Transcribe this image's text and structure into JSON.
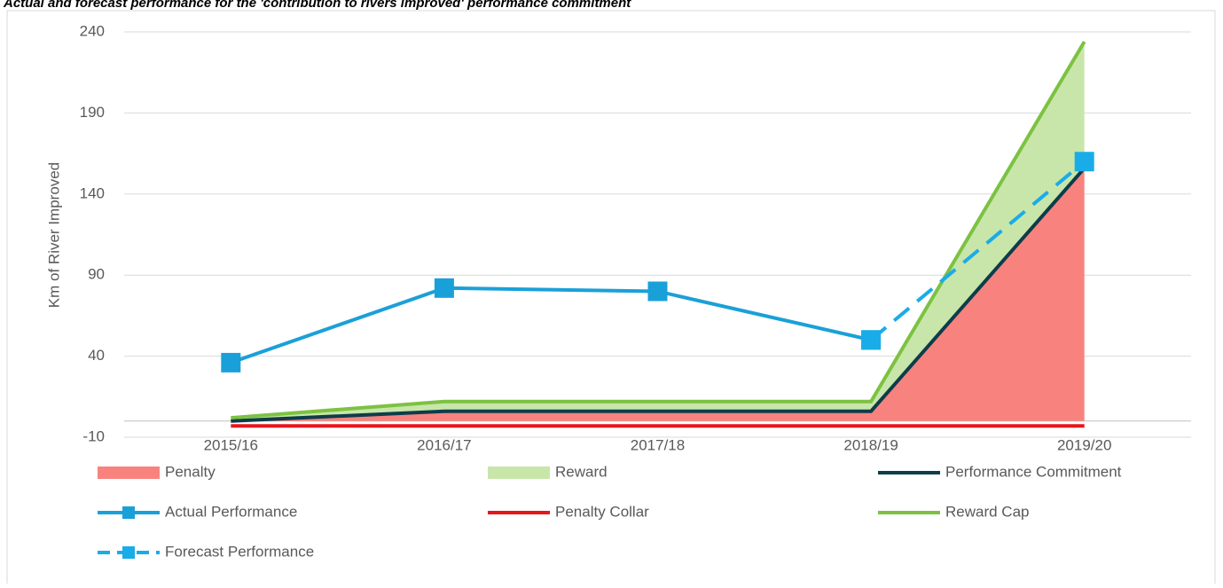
{
  "chart_data": {
    "type": "line",
    "title": "Actual and forecast performance for the 'contribution to rivers improved' performance commitment",
    "y_label": "Km of River Improved",
    "categories": [
      "2015/16",
      "2016/17",
      "2017/18",
      "2018/19",
      "2019/20"
    ],
    "ylim": [
      -10,
      240
    ],
    "yticks": [
      -10,
      40,
      90,
      140,
      190,
      240
    ],
    "grid": true,
    "series": [
      {
        "name": "Penalty",
        "style": "area",
        "stacked": true,
        "color": "#f8837e",
        "values": [
          0,
          6,
          6,
          6,
          156
        ]
      },
      {
        "name": "Reward",
        "style": "area",
        "stacked": true,
        "color": "#c8e6aa",
        "values": [
          2,
          6,
          6,
          6,
          78
        ]
      },
      {
        "name": "Performance Commitment",
        "style": "line",
        "color": "#0d3d4a",
        "values": [
          0,
          6,
          6,
          6,
          156
        ]
      },
      {
        "name": "Actual Performance",
        "style": "line",
        "marker": "square",
        "color": "#1aa0d8",
        "values": [
          36,
          82,
          80,
          50,
          null
        ]
      },
      {
        "name": "Penalty Collar",
        "style": "line",
        "color": "#e8151b",
        "values": [
          -3,
          -3,
          -3,
          -3,
          -3
        ]
      },
      {
        "name": "Reward Cap",
        "style": "line",
        "color": "#7cc242",
        "values": [
          2,
          12,
          12,
          12,
          234
        ]
      },
      {
        "name": "Forecast Performance",
        "style": "line",
        "marker": "square",
        "dash": true,
        "color": "#1aace8",
        "values": [
          null,
          null,
          null,
          50,
          160
        ]
      }
    ]
  }
}
